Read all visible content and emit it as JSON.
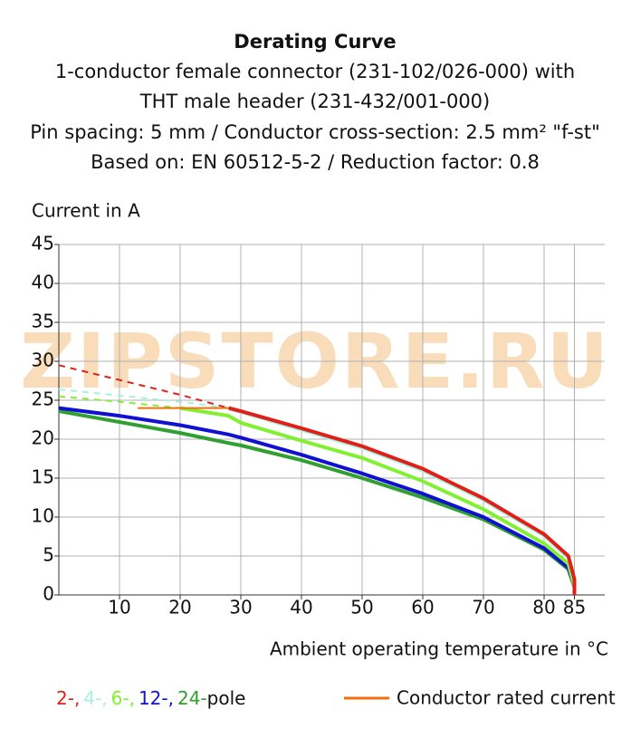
{
  "chart_data": {
    "type": "line",
    "title": "Derating Curve",
    "subtitle_lines": [
      "1-conductor female connector (231-102/026-000) with",
      "THT male header (231-432/001-000)",
      "Pin spacing: 5 mm / Conductor cross-section: 2.5 mm² \"f-st\"",
      "Based on: EN 60512-5-2 / Reduction factor: 0.8"
    ],
    "y_label": "Current in A",
    "x_label": "Ambient operating temperature in °C",
    "watermark": "ZIPSTORE.RU",
    "legend_suffix": "pole",
    "xlim": [
      0,
      90
    ],
    "ylim": [
      0,
      45
    ],
    "xticks": [
      10,
      20,
      30,
      40,
      50,
      60,
      70,
      80,
      85
    ],
    "yticks": [
      0,
      5,
      10,
      15,
      20,
      25,
      30,
      35,
      40,
      45
    ],
    "grid": true,
    "x": [
      0,
      10,
      20,
      28,
      30,
      40,
      50,
      60,
      70,
      80,
      84,
      85,
      85
    ],
    "series": [
      {
        "name": "2-,",
        "color": "#e02018",
        "values": [
          null,
          null,
          null,
          24,
          23.6,
          21.4,
          19.1,
          16.2,
          12.4,
          7.8,
          5,
          2,
          0
        ],
        "dashed_values": [
          29.5,
          27.6,
          25.7,
          24,
          null,
          null,
          null,
          null,
          null,
          null,
          null,
          null,
          null
        ]
      },
      {
        "name": "4-,",
        "color": "#a8f0dc",
        "values": [
          null,
          null,
          null,
          23.9,
          23.5,
          21.2,
          18.9,
          16,
          12.2,
          7.6,
          4.8,
          1.8,
          0
        ],
        "dashed_values": [
          26.4,
          25.6,
          24.8,
          24,
          null,
          null,
          null,
          null,
          null,
          null,
          null,
          null,
          null
        ]
      },
      {
        "name": "6-,",
        "color": "#80f030",
        "values": [
          null,
          null,
          24,
          23,
          22.1,
          19.8,
          17.6,
          14.6,
          11,
          6.6,
          4,
          1,
          0
        ],
        "dashed_values": [
          25.5,
          24.8,
          24,
          null,
          null,
          null,
          null,
          null,
          null,
          null,
          null,
          null,
          null
        ]
      },
      {
        "name": "12-,",
        "color": "#1010d0",
        "values": [
          24,
          23,
          21.8,
          20.6,
          20.2,
          18,
          15.6,
          13,
          10,
          6,
          3.5,
          1,
          0
        ]
      },
      {
        "name": "24-",
        "color": "#30a030",
        "values": [
          23.6,
          22.2,
          20.8,
          19.5,
          19.2,
          17.3,
          15,
          12.5,
          9.7,
          5.8,
          3.3,
          1,
          0
        ]
      }
    ],
    "rated_current": {
      "name": "Conductor rated current",
      "color": "#f07010",
      "x": [
        13,
        28
      ],
      "values": [
        24,
        24
      ]
    }
  }
}
